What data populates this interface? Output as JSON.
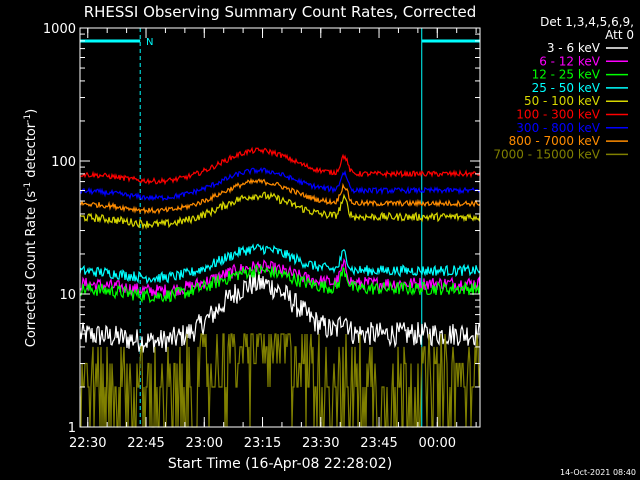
{
  "chart_data": {
    "type": "line",
    "title": "RHESSI Observing Summary Count Rates, Corrected",
    "xlabel": "Start Time (16-Apr-08 22:28:02)",
    "ylabel_main": "Corrected Count Rate (s",
    "ylabel_sup1": "-1",
    "ylabel_mid": " detector",
    "ylabel_sup2": "-1",
    "ylabel_end": ")",
    "y_scale": "log",
    "ylim": [
      1,
      1000
    ],
    "xlim_minutes": [
      0,
      103
    ],
    "x_ticks": [
      {
        "label": "22:30",
        "minutes": 2
      },
      {
        "label": "22:45",
        "minutes": 17
      },
      {
        "label": "23:00",
        "minutes": 32
      },
      {
        "label": "23:15",
        "minutes": 47
      },
      {
        "label": "23:30",
        "minutes": 62
      },
      {
        "label": "23:45",
        "minutes": 77
      },
      {
        "label": "00:00",
        "minutes": 92
      }
    ],
    "y_ticks": [
      {
        "label": "1",
        "value": 1
      },
      {
        "label": "10",
        "value": 10
      },
      {
        "label": "100",
        "value": 100
      },
      {
        "label": "1000",
        "value": 1000
      }
    ],
    "legend": {
      "position": "right",
      "header1": "Det 1,3,4,5,6,9,",
      "header2": "Att 0"
    },
    "annotations": {
      "night_label": "N",
      "night_periods": [
        [
          0,
          15.5
        ],
        [
          88,
          104
        ]
      ],
      "timestamp": "14-Oct-2021 08:40"
    },
    "flare_peak_minutes": 46,
    "spike_minutes": 68,
    "series": [
      {
        "name": "3 - 6 keV",
        "color": "#ffffff",
        "base": 5,
        "peak": 12,
        "noise": 0.09,
        "quantized": false
      },
      {
        "name": "6 - 12 keV",
        "color": "#ff00ff",
        "base": 12,
        "peak": 16,
        "noise": 0.05,
        "quantized": false
      },
      {
        "name": "12 - 25 keV",
        "color": "#00ff00",
        "base": 11,
        "peak": 15,
        "noise": 0.05,
        "quantized": false
      },
      {
        "name": "25 - 50 keV",
        "color": "#00ffff",
        "base": 15,
        "peak": 22,
        "noise": 0.04,
        "quantized": false
      },
      {
        "name": "50 - 100 keV",
        "color": "#d7d700",
        "base": 38,
        "peak": 55,
        "noise": 0.03,
        "quantized": false
      },
      {
        "name": "100 - 300 keV",
        "color": "#ff0000",
        "base": 80,
        "peak": 120,
        "noise": 0.02,
        "quantized": false
      },
      {
        "name": "300 - 800 keV",
        "color": "#0000ff",
        "base": 60,
        "peak": 85,
        "noise": 0.02,
        "quantized": false
      },
      {
        "name": "800 - 7000 keV",
        "color": "#ff8c00",
        "base": 48,
        "peak": 70,
        "noise": 0.02,
        "quantized": false
      },
      {
        "name": "7000 - 15000 keV",
        "color": "#808000",
        "base": 2.2,
        "peak": 5,
        "noise": 0.35,
        "quantized": true
      }
    ]
  }
}
